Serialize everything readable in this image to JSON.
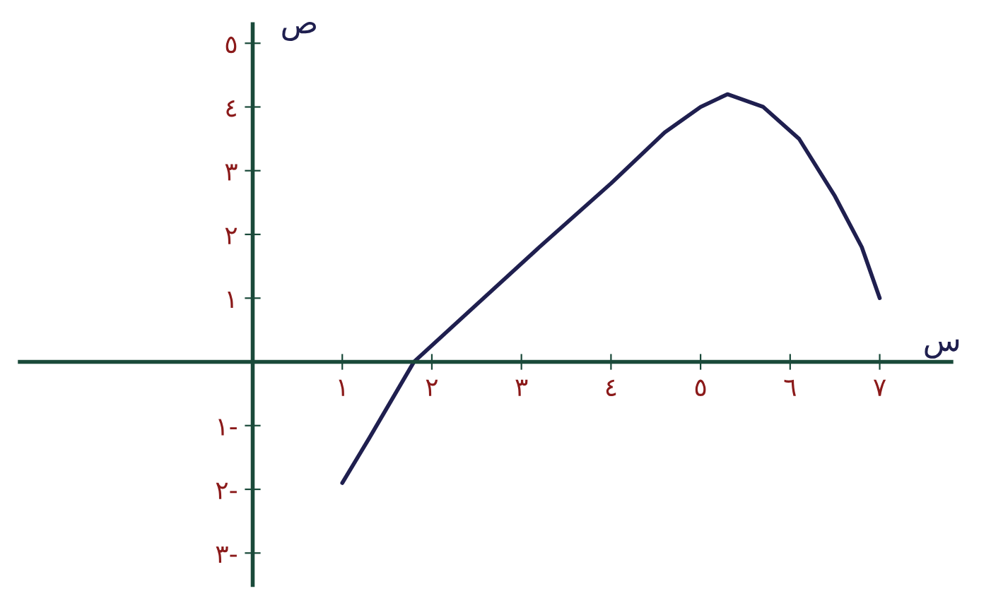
{
  "chart_data": {
    "type": "line",
    "xlabel": "س",
    "ylabel": "ص",
    "x": [
      1,
      1.3,
      1.8,
      2.5,
      3.2,
      4,
      4.6,
      5,
      5.3,
      5.7,
      6.1,
      6.5,
      6.8,
      7
    ],
    "series": [
      {
        "color": "#1f1f4f",
        "values": [
          -1.9,
          -1.2,
          0,
          0.9,
          1.8,
          2.8,
          3.6,
          4.0,
          4.2,
          4.0,
          3.5,
          2.6,
          1.8,
          1.0
        ]
      }
    ],
    "xlim": [
      -2.6,
      7.8
    ],
    "ylim": [
      -3.5,
      5.3
    ],
    "xticks": [
      {
        "value": 1,
        "label": "١"
      },
      {
        "value": 2,
        "label": "٢"
      },
      {
        "value": 3,
        "label": "٣"
      },
      {
        "value": 4,
        "label": "٤"
      },
      {
        "value": 5,
        "label": "٥"
      },
      {
        "value": 6,
        "label": "٦"
      },
      {
        "value": 7,
        "label": "٧"
      }
    ],
    "yticks": [
      {
        "value": -3,
        "label": "٣-"
      },
      {
        "value": -2,
        "label": "٢-"
      },
      {
        "value": -1,
        "label": "١-"
      },
      {
        "value": 1,
        "label": "١"
      },
      {
        "value": 2,
        "label": "٢"
      },
      {
        "value": 3,
        "label": "٣"
      },
      {
        "value": 4,
        "label": "٤"
      },
      {
        "value": 5,
        "label": "٥"
      }
    ],
    "grid": false,
    "legend": false,
    "marker": "none",
    "line_style": "solid"
  }
}
